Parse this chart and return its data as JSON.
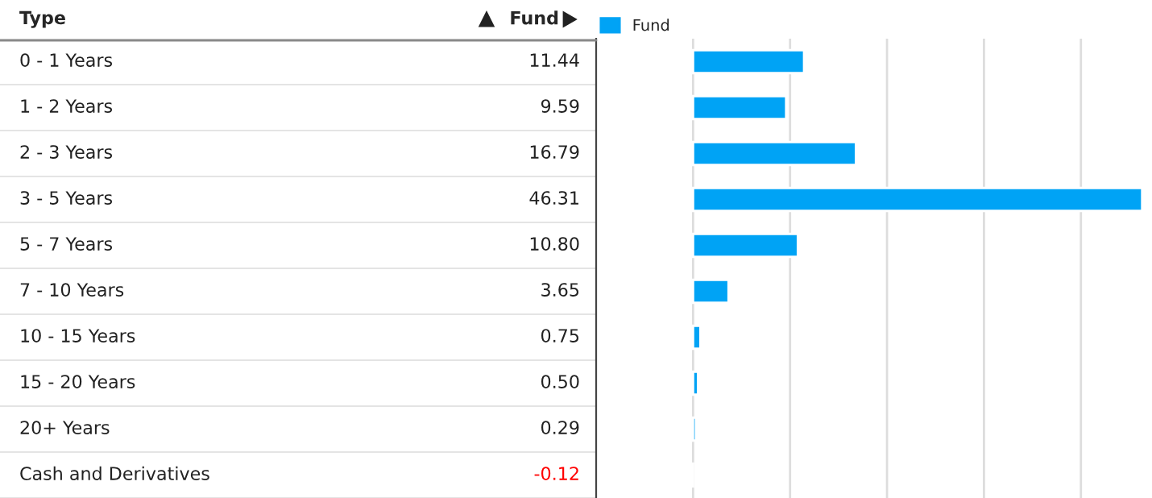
{
  "chart_data": {
    "type": "bar",
    "orientation": "horizontal",
    "ylabel": "Type",
    "xlabel": "Fund",
    "categories": [
      "0 - 1 Years",
      "1 - 2 Years",
      "2 - 3 Years",
      "3 - 5 Years",
      "5 - 7 Years",
      "7 - 10 Years",
      "10 - 15 Years",
      "15 - 20 Years",
      "20+ Years",
      "Cash and Derivatives"
    ],
    "series": [
      {
        "name": "Fund",
        "color": "#00a3f5",
        "values": [
          11.44,
          9.59,
          16.79,
          46.31,
          10.8,
          3.65,
          0.75,
          0.5,
          0.29,
          -0.12
        ],
        "value_labels": [
          "11.44",
          "9.59",
          "16.79",
          "46.31",
          "10.80",
          "3.65",
          "0.75",
          "0.50",
          "0.29",
          "-0.12"
        ]
      }
    ],
    "xlim": [
      -10,
      46.5
    ],
    "xticks": [
      {
        "value": 0,
        "label": null
      },
      {
        "value": 10,
        "label": null
      },
      {
        "value": 20,
        "label": null
      },
      {
        "value": 30,
        "label": null
      },
      {
        "value": 40,
        "label": null
      }
    ],
    "grid": "x",
    "legend": "top left"
  }
}
